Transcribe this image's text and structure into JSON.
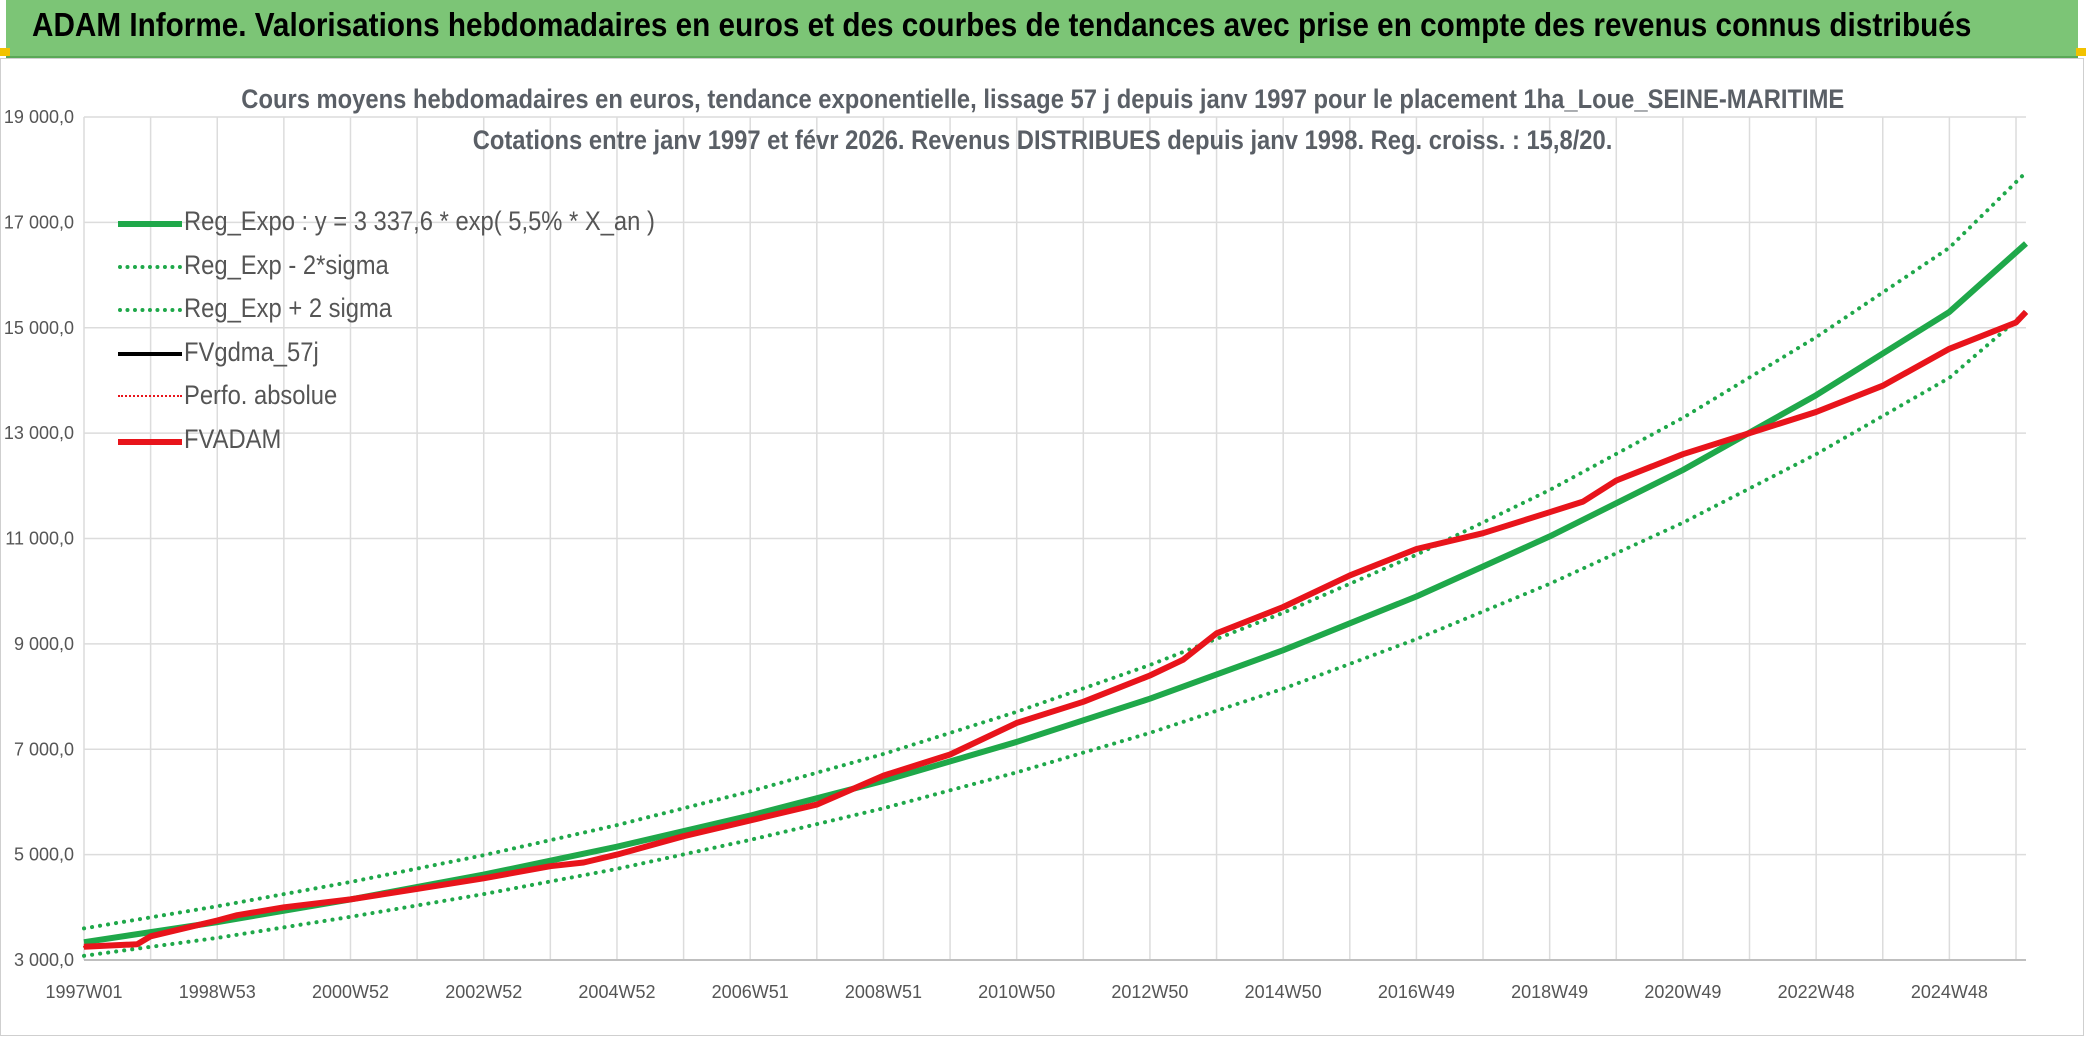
{
  "banner": {
    "title": "ADAM Informe. Valorisations hebdomadaires en euros et des courbes de tendances avec prise en compte des revenus connus distribués"
  },
  "colors": {
    "banner_bg": "#7cc576",
    "trend_green": "#1fa84a",
    "series_red": "#e8141b",
    "series_black": "#000000",
    "grid": "#dcdcdc"
  },
  "chart_data": {
    "type": "line",
    "title_line1": "Cours moyens hebdomadaires en euros, tendance exponentielle, lissage 57 j depuis janv 1997 pour le placement 1ha_Loue_SEINE-MARITIME",
    "title_line2": "Cotations entre janv 1997 et févr 2026. Revenus DISTRIBUES depuis janv 1998. Reg. croiss. : 15,8/20.",
    "xlabel": "",
    "ylabel": "",
    "ylim": [
      3000,
      19000
    ],
    "xlim": [
      1997.0,
      2026.15
    ],
    "grid": true,
    "legend_position": "top-left",
    "y_ticks": [
      3000,
      5000,
      7000,
      9000,
      11000,
      13000,
      15000,
      17000,
      19000
    ],
    "y_tick_labels": [
      "3 000,0",
      "5 000,0",
      "7 000,0",
      "9 000,0",
      "11 000,0",
      "13 000,0",
      "15 000,0",
      "17 000,0",
      "19 000,0"
    ],
    "x_ticks": [
      1997.0,
      1999.0,
      2001.0,
      2003.0,
      2005.0,
      2007.0,
      2009.0,
      2011.0,
      2013.0,
      2015.0,
      2017.0,
      2019.0,
      2021.0,
      2023.0,
      2025.0
    ],
    "x_tick_labels": [
      "1997W01",
      "1998W53",
      "2000W52",
      "2002W52",
      "2004W52",
      "2006W51",
      "2008W51",
      "2010W50",
      "2012W50",
      "2014W50",
      "2016W49",
      "2018W49",
      "2020W49",
      "2022W48",
      "2024W48"
    ],
    "legend": [
      {
        "key": "reg_expo",
        "label": "Reg_Expo : y = 3 337,6 * exp( 5,5% *  X_an )",
        "color": "#1fa84a",
        "style": "solid",
        "width": 6
      },
      {
        "key": "reg_minus",
        "label": "Reg_Exp - 2*sigma",
        "color": "#1fa84a",
        "style": "dotted",
        "width": 4
      },
      {
        "key": "reg_plus",
        "label": "Reg_Exp + 2 sigma",
        "color": "#1fa84a",
        "style": "dotted",
        "width": 4
      },
      {
        "key": "fvgdma",
        "label": "FVgdma_57j",
        "color": "#000000",
        "style": "solid",
        "width": 4
      },
      {
        "key": "perfo",
        "label": "Perfo. absolue",
        "color": "#e8141b",
        "style": "dotted",
        "width": 2
      },
      {
        "key": "fvadam",
        "label": "FVADAM",
        "color": "#e8141b",
        "style": "solid",
        "width": 6
      }
    ],
    "series": [
      {
        "name": "Reg_Expo : y = 3 337,6 * exp( 5,5% *  X_an )",
        "key": "reg_expo",
        "x": [
          1997,
          1999,
          2001,
          2003,
          2005,
          2007,
          2009,
          2011,
          2013,
          2015,
          2017,
          2019,
          2021,
          2023,
          2025,
          2026.15
        ],
        "y": [
          3338,
          3720,
          4150,
          4620,
          5150,
          5740,
          6400,
          7140,
          7960,
          8880,
          9900,
          11040,
          12300,
          13720,
          15300,
          16600
        ]
      },
      {
        "name": "Reg_Exp - 2*sigma",
        "key": "reg_minus",
        "x": [
          1997,
          1999,
          2001,
          2003,
          2005,
          2007,
          2009,
          2011,
          2013,
          2015,
          2017,
          2019,
          2021,
          2023,
          2025,
          2026.15
        ],
        "y": [
          3080,
          3420,
          3820,
          4250,
          4730,
          5280,
          5880,
          6560,
          7310,
          8150,
          9090,
          10140,
          11300,
          12600,
          14050,
          15300
        ]
      },
      {
        "name": "Reg_Exp + 2 sigma",
        "key": "reg_plus",
        "x": [
          1997,
          1999,
          2001,
          2003,
          2005,
          2007,
          2009,
          2011,
          2013,
          2015,
          2017,
          2019,
          2021,
          2023,
          2025,
          2026.15
        ],
        "y": [
          3600,
          4020,
          4480,
          4990,
          5560,
          6200,
          6910,
          7710,
          8600,
          9590,
          10690,
          11920,
          13290,
          14820,
          16520,
          17950
        ]
      },
      {
        "name": "FVgdma_57j",
        "key": "fvgdma",
        "x": [
          1997,
          1997.8,
          1998,
          1999,
          1999.3,
          2000,
          2001,
          2002,
          2003,
          2004,
          2004.5,
          2005,
          2006,
          2007,
          2008,
          2009,
          2010,
          2011,
          2012,
          2013,
          2013.5,
          2014,
          2015,
          2016,
          2017,
          2018,
          2019,
          2019.5,
          2020,
          2021,
          2022,
          2023,
          2024,
          2025,
          2026.0,
          2026.15
        ],
        "y": [
          3250,
          3300,
          3450,
          3750,
          3850,
          4000,
          4150,
          4350,
          4550,
          4780,
          4850,
          5000,
          5350,
          5650,
          5950,
          6500,
          6900,
          7500,
          7900,
          8400,
          8700,
          9200,
          9700,
          10300,
          10800,
          11100,
          11500,
          11700,
          12100,
          12600,
          13000,
          13400,
          13900,
          14600,
          15100,
          15300
        ]
      },
      {
        "name": "Perfo. absolue",
        "key": "perfo",
        "x": [
          1997,
          1997.8,
          1998,
          1999,
          1999.3,
          2000,
          2001,
          2002,
          2003,
          2004,
          2004.5,
          2005,
          2006,
          2007,
          2008,
          2009,
          2010,
          2011,
          2012,
          2013,
          2013.5,
          2014,
          2015,
          2016,
          2017,
          2018,
          2019,
          2019.5,
          2020,
          2021,
          2022,
          2023,
          2024,
          2025,
          2026.0,
          2026.15
        ],
        "y": [
          3250,
          3300,
          3450,
          3750,
          3850,
          4000,
          4150,
          4350,
          4550,
          4780,
          4850,
          5000,
          5350,
          5650,
          5950,
          6500,
          6900,
          7500,
          7900,
          8400,
          8700,
          9200,
          9700,
          10300,
          10800,
          11100,
          11500,
          11700,
          12100,
          12600,
          13000,
          13400,
          13900,
          14600,
          15100,
          15300
        ]
      },
      {
        "name": "FVADAM",
        "key": "fvadam",
        "x": [
          1997,
          1997.8,
          1998,
          1999,
          1999.3,
          2000,
          2001,
          2002,
          2003,
          2004,
          2004.5,
          2005,
          2006,
          2007,
          2008,
          2009,
          2010,
          2011,
          2012,
          2013,
          2013.5,
          2014,
          2015,
          2016,
          2017,
          2018,
          2019,
          2019.5,
          2020,
          2021,
          2022,
          2023,
          2024,
          2025,
          2026.0,
          2026.15
        ],
        "y": [
          3250,
          3300,
          3450,
          3750,
          3850,
          4000,
          4150,
          4350,
          4550,
          4780,
          4850,
          5000,
          5350,
          5650,
          5950,
          6500,
          6900,
          7500,
          7900,
          8400,
          8700,
          9200,
          9700,
          10300,
          10800,
          11100,
          11500,
          11700,
          12100,
          12600,
          13000,
          13400,
          13900,
          14600,
          15100,
          15300
        ]
      }
    ]
  }
}
